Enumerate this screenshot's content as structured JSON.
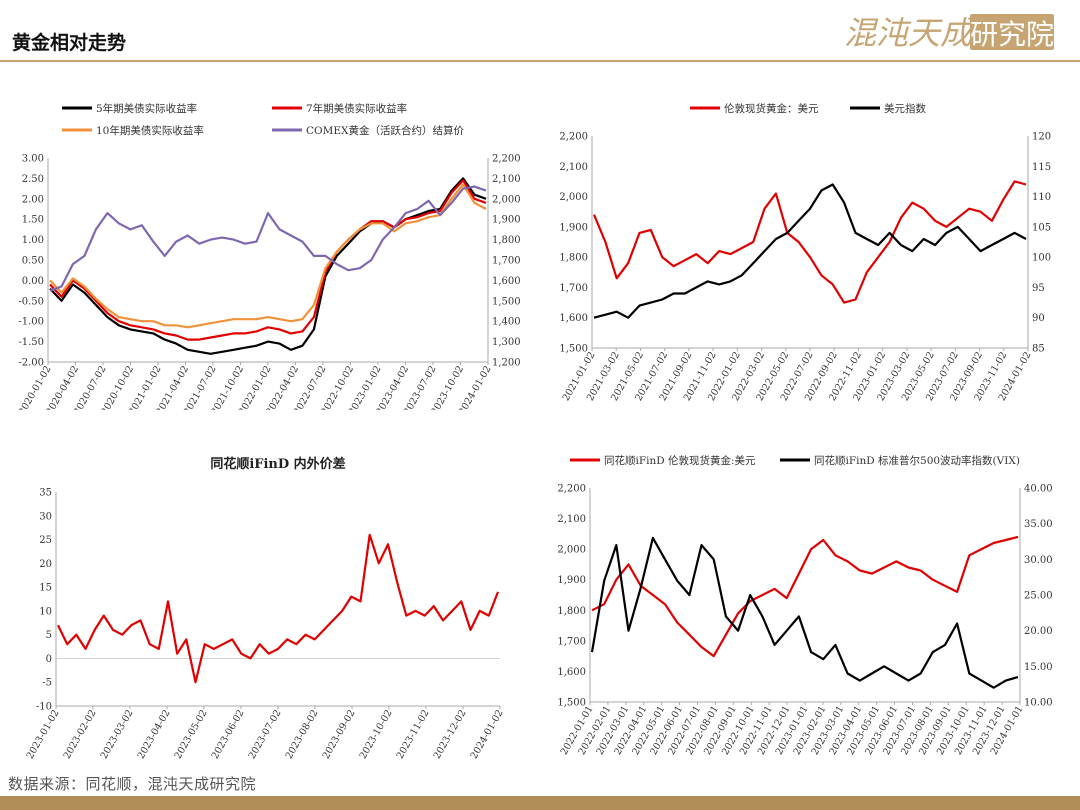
{
  "header": {
    "title": "黄金相对走势",
    "logo_text": "混沌天成",
    "logo_box_text": "研究院",
    "accent_color": "#c7a573"
  },
  "footer": {
    "source": "数据来源：同花顺，混沌天成研究院"
  },
  "chart_data": [
    {
      "type": "line",
      "title": "",
      "legend_position": "top",
      "x_tick_labels": [
        "2020-01-02",
        "2020-04-02",
        "2020-07-02",
        "2020-10-02",
        "2021-01-02",
        "2021-04-02",
        "2021-07-02",
        "2021-10-02",
        "2022-01-02",
        "2022-04-02",
        "2022-07-02",
        "2022-10-02",
        "2023-01-02",
        "2023-04-02",
        "2023-07-02",
        "2023-10-02",
        "2024-01-02"
      ],
      "y_left_ticks": [
        "3.00",
        "2.50",
        "2.00",
        "1.50",
        "1.00",
        "0.50",
        "0.00",
        "-0.50",
        "-1.00",
        "-1.50",
        "-2.00"
      ],
      "y_left_range": [
        -2.0,
        3.0
      ],
      "y_right_ticks": [
        "2,200",
        "2,100",
        "2,000",
        "1,900",
        "1,800",
        "1,700",
        "1,600",
        "1,500",
        "1,400",
        "1,300",
        "1,200"
      ],
      "y_right_range": [
        1200,
        2200
      ],
      "series": [
        {
          "name": "5年期美债实际收益率",
          "color": "#000000",
          "axis": "left",
          "values": [
            -0.2,
            -0.5,
            -0.1,
            -0.3,
            -0.6,
            -0.9,
            -1.1,
            -1.2,
            -1.25,
            -1.3,
            -1.45,
            -1.55,
            -1.7,
            -1.75,
            -1.8,
            -1.75,
            -1.7,
            -1.65,
            -1.6,
            -1.5,
            -1.55,
            -1.7,
            -1.6,
            -1.2,
            0.1,
            0.6,
            0.9,
            1.2,
            1.4,
            1.45,
            1.3,
            1.5,
            1.6,
            1.7,
            1.75,
            2.2,
            2.5,
            2.1,
            2.0
          ]
        },
        {
          "name": "7年期美债实际收益率",
          "color": "#e00000",
          "axis": "left",
          "values": [
            -0.1,
            -0.4,
            0.0,
            -0.2,
            -0.5,
            -0.8,
            -1.0,
            -1.1,
            -1.15,
            -1.2,
            -1.3,
            -1.35,
            -1.45,
            -1.45,
            -1.4,
            -1.35,
            -1.3,
            -1.3,
            -1.25,
            -1.15,
            -1.2,
            -1.3,
            -1.25,
            -0.9,
            0.2,
            0.7,
            1.0,
            1.25,
            1.45,
            1.45,
            1.3,
            1.5,
            1.55,
            1.65,
            1.7,
            2.15,
            2.45,
            2.0,
            1.9
          ]
        },
        {
          "name": "10年期美债实际收益率",
          "color": "#f0923a",
          "axis": "left",
          "values": [
            0.0,
            -0.3,
            0.05,
            -0.15,
            -0.45,
            -0.7,
            -0.9,
            -0.95,
            -1.0,
            -1.0,
            -1.1,
            -1.1,
            -1.15,
            -1.1,
            -1.05,
            -1.0,
            -0.95,
            -0.95,
            -0.95,
            -0.9,
            -0.95,
            -1.0,
            -0.95,
            -0.6,
            0.3,
            0.7,
            1.0,
            1.25,
            1.4,
            1.4,
            1.2,
            1.4,
            1.45,
            1.55,
            1.6,
            2.0,
            2.35,
            1.9,
            1.75
          ]
        },
        {
          "name": "COMEX黄金（活跃合约）结算价",
          "color": "#7f67b0",
          "axis": "right",
          "values": [
            1550,
            1570,
            1680,
            1720,
            1850,
            1930,
            1880,
            1850,
            1870,
            1790,
            1720,
            1790,
            1820,
            1780,
            1800,
            1810,
            1800,
            1780,
            1790,
            1930,
            1850,
            1820,
            1790,
            1720,
            1720,
            1680,
            1650,
            1660,
            1700,
            1800,
            1860,
            1930,
            1950,
            1990,
            1920,
            1980,
            2050,
            2060,
            2040
          ]
        }
      ]
    },
    {
      "type": "line",
      "title": "",
      "legend_position": "top",
      "x_tick_labels": [
        "2021-01-02",
        "2021-03-02",
        "2021-05-02",
        "2021-07-02",
        "2021-09-02",
        "2021-11-02",
        "2022-01-02",
        "2022-03-02",
        "2022-05-02",
        "2022-07-02",
        "2022-09-02",
        "2022-11-02",
        "2023-01-02",
        "2023-03-02",
        "2023-05-02",
        "2023-07-02",
        "2023-09-02",
        "2023-11-02",
        "2024-01-02"
      ],
      "y_left_ticks": [
        "2,200",
        "2,100",
        "2,000",
        "1,900",
        "1,800",
        "1,700",
        "1,600",
        "1,500"
      ],
      "y_left_range": [
        1500,
        2200
      ],
      "y_right_ticks": [
        "120",
        "115",
        "110",
        "105",
        "100",
        "95",
        "90",
        "85"
      ],
      "y_right_range": [
        85,
        120
      ],
      "series": [
        {
          "name": "伦敦现货黄金：美元",
          "color": "#e00000",
          "axis": "left",
          "values": [
            1940,
            1850,
            1730,
            1780,
            1880,
            1890,
            1800,
            1770,
            1790,
            1810,
            1780,
            1820,
            1810,
            1830,
            1850,
            1960,
            2010,
            1880,
            1850,
            1800,
            1740,
            1710,
            1650,
            1660,
            1750,
            1800,
            1850,
            1930,
            1980,
            1960,
            1920,
            1900,
            1930,
            1960,
            1950,
            1920,
            1990,
            2050,
            2040
          ]
        },
        {
          "name": "美元指数",
          "color": "#000000",
          "axis": "right",
          "values": [
            90,
            90.5,
            91,
            90,
            92,
            92.5,
            93,
            94,
            94,
            95,
            96,
            95.5,
            96,
            97,
            99,
            101,
            103,
            104,
            106,
            108,
            111,
            112,
            109,
            104,
            103,
            102,
            104,
            102,
            101,
            103,
            102,
            104,
            105,
            103,
            101,
            102,
            103,
            104,
            103
          ]
        }
      ]
    },
    {
      "type": "line",
      "title": "同花顺iFinD 内外价差",
      "legend_position": "none",
      "x_tick_labels": [
        "2023-01-02",
        "2023-02-02",
        "2023-03-02",
        "2023-04-02",
        "2023-05-02",
        "2023-06-02",
        "2023-07-02",
        "2023-08-02",
        "2023-09-02",
        "2023-10-02",
        "2023-11-02",
        "2023-12-02",
        "2024-01-02"
      ],
      "y_left_ticks": [
        "35",
        "30",
        "25",
        "20",
        "15",
        "10",
        "5",
        "0",
        "-5",
        "-10"
      ],
      "y_left_range": [
        -10,
        35
      ],
      "series": [
        {
          "name": "",
          "color": "#e00000",
          "axis": "left",
          "values": [
            7,
            3,
            5,
            2,
            6,
            9,
            6,
            5,
            7,
            8,
            3,
            2,
            12,
            1,
            4,
            -5,
            3,
            2,
            3,
            4,
            1,
            0,
            3,
            1,
            2,
            4,
            3,
            5,
            4,
            6,
            8,
            10,
            13,
            12,
            26,
            20,
            24,
            16,
            9,
            10,
            9,
            11,
            8,
            10,
            12,
            6,
            10,
            9,
            14
          ]
        }
      ]
    },
    {
      "type": "line",
      "title": "",
      "legend_position": "top",
      "x_tick_labels": [
        "2022-01-01",
        "2022-02-01",
        "2022-03-01",
        "2022-04-01",
        "2022-05-01",
        "2022-06-01",
        "2022-07-01",
        "2022-08-01",
        "2022-09-01",
        "2022-10-01",
        "2022-11-01",
        "2022-12-01",
        "2023-01-01",
        "2023-02-01",
        "2023-03-01",
        "2023-04-01",
        "2023-05-01",
        "2023-06-01",
        "2023-07-01",
        "2023-08-01",
        "2023-09-01",
        "2023-10-01",
        "2023-11-01",
        "2023-12-01",
        "2024-01-01"
      ],
      "y_left_ticks": [
        "2,200",
        "2,100",
        "2,000",
        "1,900",
        "1,800",
        "1,700",
        "1,600",
        "1,500"
      ],
      "y_left_range": [
        1500,
        2200
      ],
      "y_right_ticks": [
        "40.00",
        "35.00",
        "30.00",
        "25.00",
        "20.00",
        "15.00",
        "10.00"
      ],
      "y_right_range": [
        10,
        40
      ],
      "series": [
        {
          "name": "同花顺iFinD 伦敦现货黄金:美元",
          "color": "#e00000",
          "axis": "left",
          "values": [
            1800,
            1820,
            1900,
            1950,
            1880,
            1850,
            1820,
            1760,
            1720,
            1680,
            1650,
            1720,
            1790,
            1830,
            1850,
            1870,
            1840,
            1920,
            2000,
            2030,
            1980,
            1960,
            1930,
            1920,
            1940,
            1960,
            1940,
            1930,
            1900,
            1880,
            1860,
            1980,
            2000,
            2020,
            2030,
            2040
          ]
        },
        {
          "name": "同花顺iFinD 标准普尔500波动率指数(VIX)",
          "color": "#000000",
          "axis": "right",
          "values": [
            17,
            27,
            32,
            20,
            26,
            33,
            30,
            27,
            25,
            32,
            30,
            22,
            20,
            25,
            22,
            18,
            20,
            22,
            17,
            16,
            18,
            14,
            13,
            14,
            15,
            14,
            13,
            14,
            17,
            18,
            21,
            14,
            13,
            12,
            13,
            13.5
          ]
        }
      ]
    }
  ]
}
